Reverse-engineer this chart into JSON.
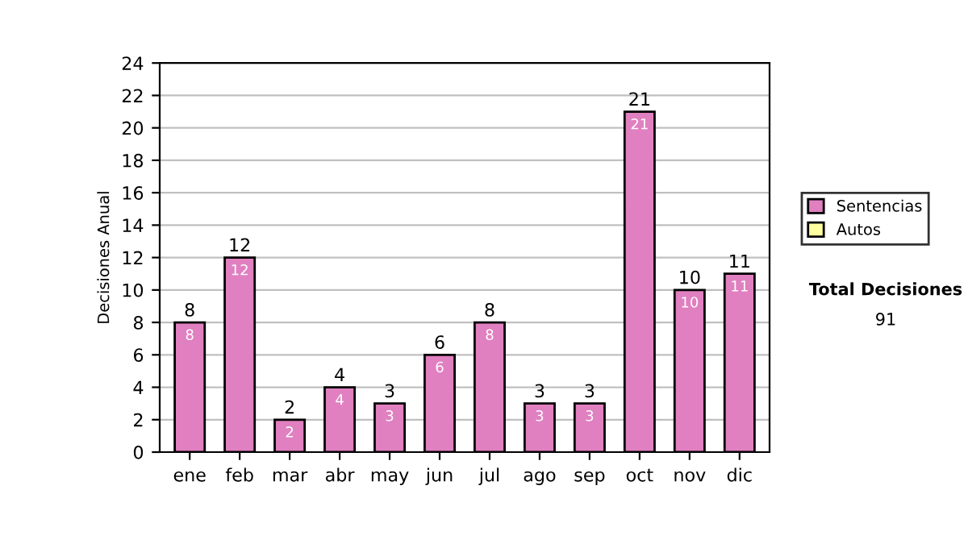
{
  "chart_data": {
    "type": "bar",
    "ylabel": "Decisiones Anual",
    "categories": [
      "ene",
      "feb",
      "mar",
      "abr",
      "may",
      "jun",
      "jul",
      "ago",
      "sep",
      "oct",
      "nov",
      "dic"
    ],
    "series": [
      {
        "name": "Sentencias",
        "color": "#e080c0",
        "values": [
          8,
          12,
          2,
          4,
          3,
          6,
          8,
          3,
          3,
          21,
          10,
          11
        ],
        "value_labels": [
          "8",
          "12",
          "2",
          "4",
          "3",
          "6",
          "8",
          "3",
          "3",
          "21",
          "10",
          "11"
        ]
      },
      {
        "name": "Autos",
        "color": "#ffffa0",
        "values": [
          null,
          null,
          null,
          null,
          null,
          null,
          null,
          null,
          null,
          null,
          null,
          null
        ]
      }
    ],
    "stacked": true,
    "totals": [
      "8",
      "12",
      "2",
      "4",
      "3",
      "6",
      "8",
      "3",
      "3",
      "21",
      "10",
      "11"
    ],
    "ylim": [
      0,
      24
    ],
    "yticks": [
      0,
      2,
      4,
      6,
      8,
      10,
      12,
      14,
      16,
      18,
      20,
      22,
      24
    ],
    "grid": "y",
    "legend": "right",
    "annotations": [
      "Total Decisiones",
      "91"
    ]
  }
}
